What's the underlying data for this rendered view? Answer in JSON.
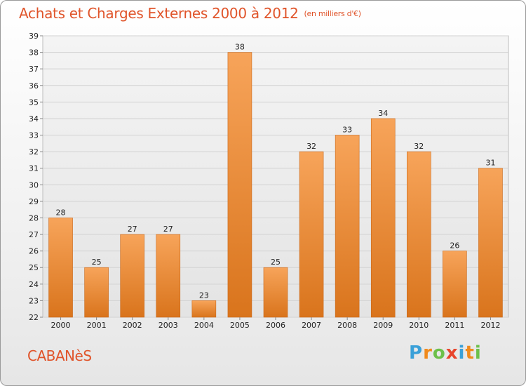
{
  "header": {
    "title": "Achats et Charges Externes 2000 à 2012",
    "unit": "(en milliers d'€)"
  },
  "footer": {
    "city": "CABANèS",
    "logo_letters": [
      "P",
      "r",
      "o",
      "x",
      "i",
      "t",
      "i"
    ],
    "logo_colors": [
      "#3aa0d8",
      "#f08a1c",
      "#6cc04a",
      "#e8452c",
      "#3aa0d8",
      "#f08a1c",
      "#6cc04a"
    ]
  },
  "colors": {
    "bar_top": "#f7a45a",
    "bar_bottom": "#d9741c",
    "bar_edge": "#c9681a",
    "text_accent": "#e0542a"
  },
  "chart_data": {
    "type": "bar",
    "categories": [
      "2000",
      "2001",
      "2002",
      "2003",
      "2004",
      "2005",
      "2006",
      "2007",
      "2008",
      "2009",
      "2010",
      "2011",
      "2012"
    ],
    "values": [
      28,
      25,
      27,
      27,
      23,
      38,
      25,
      32,
      33,
      34,
      32,
      26,
      31
    ],
    "data_labels": [
      "28",
      "25",
      "27",
      "27",
      "23",
      "38",
      "25",
      "32",
      "33",
      "34",
      "32",
      "26",
      "31"
    ],
    "ylim": [
      22,
      39
    ],
    "yticks": [
      22,
      23,
      24,
      25,
      26,
      27,
      28,
      29,
      30,
      31,
      32,
      33,
      34,
      35,
      36,
      37,
      38,
      39
    ],
    "grid": true,
    "legend": "none"
  }
}
